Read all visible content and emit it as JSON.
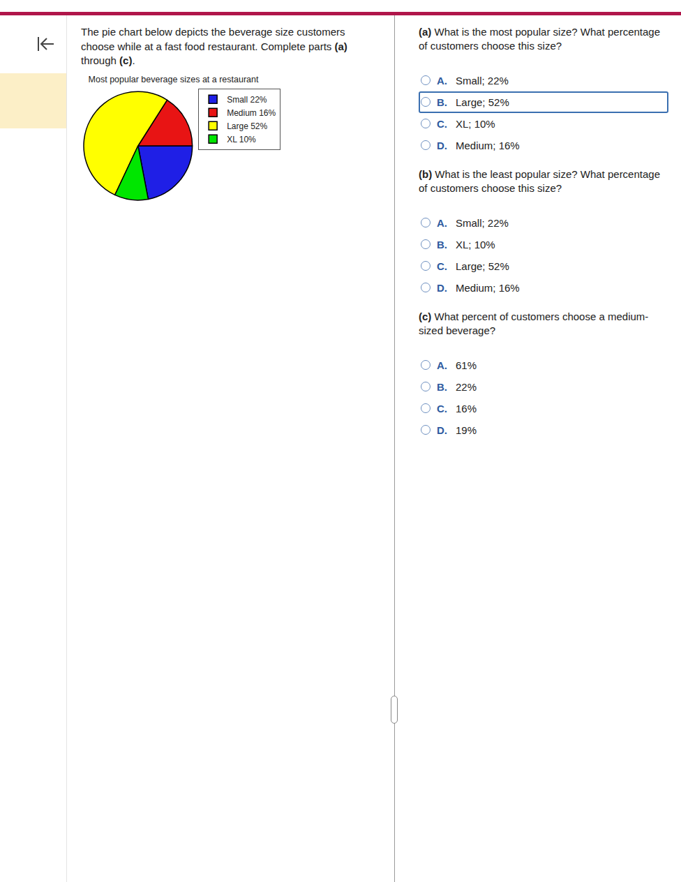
{
  "intro": [
    "The pie chart below depicts the beverage size customers choose while at a fast food restaurant. Complete parts ",
    "(a)",
    " through ",
    "(c)",
    "."
  ],
  "chart_data": {
    "type": "pie",
    "title": "Most popular beverage sizes at a restaurant",
    "categories": [
      "Small",
      "Medium",
      "Large",
      "XL"
    ],
    "legend_labels": [
      "Small 22%",
      "Medium 16%",
      "Large 52%",
      "XL 10%"
    ],
    "values": [
      22,
      16,
      52,
      10
    ],
    "colors": [
      "#1f1fe6",
      "#e81414",
      "#ffff00",
      "#00e600"
    ],
    "legend": "right",
    "data_labels": false
  },
  "questions": [
    {
      "label": "(a)",
      "text": "What is the most popular size? What percentage of customers choose this size?",
      "options": [
        {
          "letter": "A.",
          "text": "Small; 22%"
        },
        {
          "letter": "B.",
          "text": "Large; 52%",
          "focused": true
        },
        {
          "letter": "C.",
          "text": "XL; 10%"
        },
        {
          "letter": "D.",
          "text": "Medium; 16%"
        }
      ]
    },
    {
      "label": "(b)",
      "text": "What is the least popular size? What percentage of customers choose this size?",
      "options": [
        {
          "letter": "A.",
          "text": "Small; 22%"
        },
        {
          "letter": "B.",
          "text": "XL; 10%"
        },
        {
          "letter": "C.",
          "text": "Large; 52%"
        },
        {
          "letter": "D.",
          "text": "Medium; 16%"
        }
      ]
    },
    {
      "label": "(c)",
      "text": "What percent of customers choose a medium-sized beverage?",
      "options": [
        {
          "letter": "A.",
          "text": "61%"
        },
        {
          "letter": "B.",
          "text": "22%"
        },
        {
          "letter": "C.",
          "text": "16%"
        },
        {
          "letter": "D.",
          "text": "19%"
        }
      ]
    }
  ]
}
